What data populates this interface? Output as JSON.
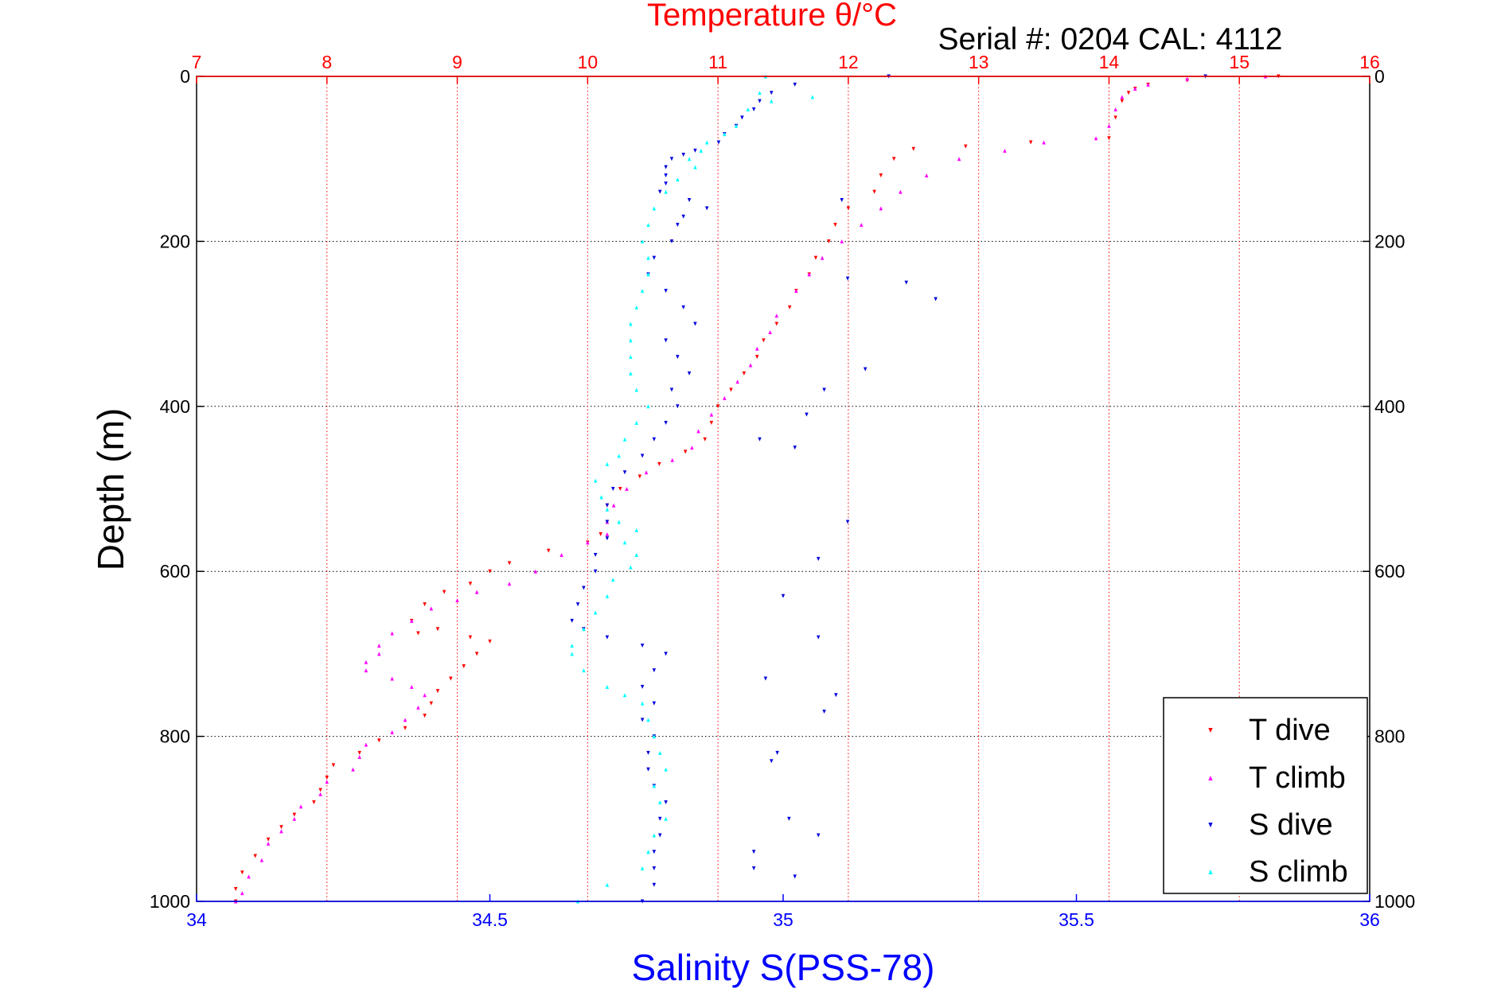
{
  "chart_data": {
    "type": "scatter",
    "title": "Temperature θ/°C",
    "annotation": "Serial #: 0204  CAL: 4112",
    "ylabel": "Depth (m)",
    "xlabel_bottom": "Salinity S(PSS-78)",
    "xlabel_top": "Temperature θ/°C",
    "ylim": [
      0,
      1000
    ],
    "y_reversed": true,
    "xlim_bottom": [
      34,
      36
    ],
    "xlim_top": [
      7,
      16
    ],
    "yticks": [
      "0",
      "200",
      "400",
      "600",
      "800",
      "1000"
    ],
    "xticks_bottom": [
      "34",
      "34.5",
      "35",
      "35.5",
      "36"
    ],
    "xticks_top": [
      "7",
      "8",
      "9",
      "10",
      "11",
      "12",
      "13",
      "14",
      "15",
      "16"
    ],
    "grid": true,
    "legend_position": "bottom-right",
    "colors": {
      "temperature_axis": "#ff0000",
      "salinity_axis": "#0000ff",
      "t_dive": "#ff0000",
      "t_climb": "#ff00ff",
      "s_dive": "#0000dd",
      "s_climb": "#00ffff"
    },
    "series": [
      {
        "name": "T dive",
        "axis": "temperature",
        "marker": "triangle-down",
        "color": "#ff0000",
        "points": [
          [
            15.3,
            0
          ],
          [
            14.6,
            5
          ],
          [
            14.3,
            10
          ],
          [
            14.2,
            15
          ],
          [
            14.15,
            20
          ],
          [
            14.1,
            30
          ],
          [
            14.05,
            50
          ],
          [
            14.0,
            75
          ],
          [
            13.4,
            80
          ],
          [
            12.9,
            85
          ],
          [
            12.5,
            88
          ],
          [
            12.35,
            100
          ],
          [
            12.25,
            120
          ],
          [
            12.2,
            140
          ],
          [
            12.0,
            160
          ],
          [
            11.9,
            180
          ],
          [
            11.85,
            200
          ],
          [
            11.75,
            220
          ],
          [
            11.7,
            240
          ],
          [
            11.6,
            260
          ],
          [
            11.55,
            280
          ],
          [
            11.45,
            300
          ],
          [
            11.35,
            320
          ],
          [
            11.3,
            340
          ],
          [
            11.2,
            360
          ],
          [
            11.1,
            380
          ],
          [
            11.0,
            400
          ],
          [
            10.95,
            420
          ],
          [
            10.9,
            440
          ],
          [
            10.75,
            455
          ],
          [
            10.55,
            470
          ],
          [
            10.4,
            485
          ],
          [
            10.25,
            500
          ],
          [
            10.15,
            520
          ],
          [
            10.15,
            540
          ],
          [
            10.1,
            555
          ],
          [
            10.0,
            565
          ],
          [
            9.7,
            575
          ],
          [
            9.4,
            590
          ],
          [
            9.25,
            600
          ],
          [
            9.1,
            615
          ],
          [
            8.9,
            625
          ],
          [
            8.75,
            640
          ],
          [
            8.65,
            660
          ],
          [
            8.85,
            670
          ],
          [
            8.7,
            675
          ],
          [
            9.1,
            680
          ],
          [
            9.25,
            685
          ],
          [
            9.15,
            700
          ],
          [
            9.05,
            715
          ],
          [
            8.95,
            730
          ],
          [
            8.85,
            745
          ],
          [
            8.8,
            760
          ],
          [
            8.75,
            775
          ],
          [
            8.6,
            790
          ],
          [
            8.4,
            805
          ],
          [
            8.25,
            820
          ],
          [
            8.05,
            835
          ],
          [
            8.0,
            850
          ],
          [
            7.95,
            865
          ],
          [
            7.9,
            880
          ],
          [
            7.75,
            895
          ],
          [
            7.65,
            910
          ],
          [
            7.55,
            925
          ],
          [
            7.45,
            945
          ],
          [
            7.35,
            965
          ],
          [
            7.3,
            985
          ],
          [
            7.3,
            1000
          ]
        ]
      },
      {
        "name": "T climb",
        "axis": "temperature",
        "marker": "triangle-up",
        "color": "#ff00ff",
        "points": [
          [
            15.2,
            0
          ],
          [
            14.6,
            3
          ],
          [
            14.3,
            10
          ],
          [
            14.2,
            15
          ],
          [
            14.1,
            25
          ],
          [
            14.05,
            40
          ],
          [
            14.0,
            60
          ],
          [
            13.9,
            75
          ],
          [
            13.5,
            80
          ],
          [
            13.2,
            90
          ],
          [
            12.85,
            100
          ],
          [
            12.6,
            120
          ],
          [
            12.4,
            140
          ],
          [
            12.25,
            160
          ],
          [
            12.1,
            180
          ],
          [
            11.95,
            200
          ],
          [
            11.8,
            220
          ],
          [
            11.7,
            240
          ],
          [
            11.6,
            260
          ],
          [
            11.45,
            290
          ],
          [
            11.4,
            310
          ],
          [
            11.3,
            330
          ],
          [
            11.25,
            350
          ],
          [
            11.15,
            370
          ],
          [
            11.05,
            390
          ],
          [
            10.95,
            410
          ],
          [
            10.85,
            430
          ],
          [
            10.8,
            450
          ],
          [
            10.65,
            465
          ],
          [
            10.45,
            480
          ],
          [
            10.3,
            500
          ],
          [
            10.2,
            520
          ],
          [
            10.15,
            540
          ],
          [
            10.15,
            555
          ],
          [
            10.0,
            565
          ],
          [
            9.8,
            580
          ],
          [
            9.6,
            600
          ],
          [
            9.4,
            615
          ],
          [
            9.15,
            625
          ],
          [
            9.0,
            635
          ],
          [
            8.8,
            645
          ],
          [
            8.65,
            660
          ],
          [
            8.5,
            675
          ],
          [
            8.4,
            690
          ],
          [
            8.4,
            700
          ],
          [
            8.3,
            710
          ],
          [
            8.3,
            720
          ],
          [
            8.5,
            730
          ],
          [
            8.65,
            740
          ],
          [
            8.75,
            750
          ],
          [
            8.7,
            765
          ],
          [
            8.6,
            780
          ],
          [
            8.5,
            795
          ],
          [
            8.3,
            810
          ],
          [
            8.25,
            825
          ],
          [
            8.2,
            840
          ],
          [
            8.0,
            855
          ],
          [
            7.95,
            870
          ],
          [
            7.8,
            885
          ],
          [
            7.75,
            900
          ],
          [
            7.65,
            915
          ],
          [
            7.55,
            930
          ],
          [
            7.5,
            950
          ],
          [
            7.4,
            970
          ],
          [
            7.35,
            990
          ],
          [
            7.3,
            1000
          ]
        ]
      },
      {
        "name": "S dive",
        "axis": "salinity",
        "marker": "triangle-down",
        "color": "#0000dd",
        "points": [
          [
            35.02,
            10
          ],
          [
            34.98,
            20
          ],
          [
            34.96,
            30
          ],
          [
            34.95,
            40
          ],
          [
            34.93,
            50
          ],
          [
            34.92,
            60
          ],
          [
            34.9,
            70
          ],
          [
            34.89,
            80
          ],
          [
            34.85,
            90
          ],
          [
            34.83,
            95
          ],
          [
            34.81,
            100
          ],
          [
            34.8,
            110
          ],
          [
            34.8,
            120
          ],
          [
            34.8,
            130
          ],
          [
            34.79,
            140
          ],
          [
            34.84,
            150
          ],
          [
            34.87,
            160
          ],
          [
            34.83,
            170
          ],
          [
            34.82,
            180
          ],
          [
            34.81,
            200
          ],
          [
            34.78,
            220
          ],
          [
            34.77,
            240
          ],
          [
            34.8,
            260
          ],
          [
            34.83,
            280
          ],
          [
            34.85,
            300
          ],
          [
            34.8,
            320
          ],
          [
            34.82,
            340
          ],
          [
            34.84,
            360
          ],
          [
            34.81,
            380
          ],
          [
            34.82,
            400
          ],
          [
            34.8,
            420
          ],
          [
            34.78,
            440
          ],
          [
            34.76,
            460
          ],
          [
            34.73,
            480
          ],
          [
            34.71,
            500
          ],
          [
            34.7,
            520
          ],
          [
            34.7,
            540
          ],
          [
            34.7,
            560
          ],
          [
            34.68,
            580
          ],
          [
            34.68,
            600
          ],
          [
            34.66,
            620
          ],
          [
            34.65,
            640
          ],
          [
            34.64,
            660
          ],
          [
            34.66,
            670
          ],
          [
            34.7,
            680
          ],
          [
            34.76,
            690
          ],
          [
            34.8,
            700
          ],
          [
            34.78,
            720
          ],
          [
            34.76,
            740
          ],
          [
            34.78,
            760
          ],
          [
            34.76,
            780
          ],
          [
            34.78,
            800
          ],
          [
            34.77,
            820
          ],
          [
            34.77,
            840
          ],
          [
            34.78,
            860
          ],
          [
            34.8,
            880
          ],
          [
            34.79,
            900
          ],
          [
            34.79,
            920
          ],
          [
            34.78,
            940
          ],
          [
            34.78,
            960
          ],
          [
            34.78,
            980
          ],
          [
            34.76,
            1000
          ],
          [
            35.1,
            150
          ],
          [
            35.11,
            245
          ],
          [
            35.21,
            250
          ],
          [
            35.26,
            270
          ],
          [
            35.14,
            355
          ],
          [
            35.07,
            380
          ],
          [
            35.04,
            410
          ],
          [
            34.96,
            440
          ],
          [
            35.02,
            450
          ],
          [
            35.11,
            540
          ],
          [
            35.06,
            585
          ],
          [
            35.0,
            630
          ],
          [
            35.06,
            680
          ],
          [
            34.97,
            730
          ],
          [
            35.09,
            750
          ],
          [
            35.07,
            770
          ],
          [
            34.99,
            820
          ],
          [
            34.98,
            830
          ],
          [
            35.01,
            900
          ],
          [
            35.06,
            920
          ],
          [
            34.95,
            940
          ],
          [
            34.95,
            960
          ],
          [
            35.02,
            970
          ],
          [
            35.18,
            0
          ],
          [
            35.72,
            0
          ]
        ]
      },
      {
        "name": "S climb",
        "axis": "salinity",
        "marker": "triangle-up",
        "color": "#00ffff",
        "points": [
          [
            34.97,
            0
          ],
          [
            34.96,
            20
          ],
          [
            34.98,
            30
          ],
          [
            35.05,
            25
          ],
          [
            34.94,
            40
          ],
          [
            34.92,
            60
          ],
          [
            34.9,
            70
          ],
          [
            34.87,
            80
          ],
          [
            34.86,
            90
          ],
          [
            34.84,
            100
          ],
          [
            34.85,
            110
          ],
          [
            34.82,
            125
          ],
          [
            34.8,
            140
          ],
          [
            34.78,
            160
          ],
          [
            34.77,
            180
          ],
          [
            34.76,
            200
          ],
          [
            34.77,
            220
          ],
          [
            34.77,
            240
          ],
          [
            34.76,
            260
          ],
          [
            34.75,
            280
          ],
          [
            34.74,
            300
          ],
          [
            34.74,
            320
          ],
          [
            34.74,
            340
          ],
          [
            34.74,
            360
          ],
          [
            34.75,
            380
          ],
          [
            34.77,
            400
          ],
          [
            34.75,
            420
          ],
          [
            34.73,
            440
          ],
          [
            34.72,
            460
          ],
          [
            34.7,
            470
          ],
          [
            34.68,
            490
          ],
          [
            34.69,
            510
          ],
          [
            34.7,
            525
          ],
          [
            34.72,
            540
          ],
          [
            34.75,
            550
          ],
          [
            34.73,
            565
          ],
          [
            34.75,
            580
          ],
          [
            34.74,
            595
          ],
          [
            34.71,
            610
          ],
          [
            34.7,
            630
          ],
          [
            34.68,
            650
          ],
          [
            34.66,
            670
          ],
          [
            34.64,
            690
          ],
          [
            34.64,
            700
          ],
          [
            34.66,
            720
          ],
          [
            34.7,
            740
          ],
          [
            34.73,
            750
          ],
          [
            34.76,
            760
          ],
          [
            34.77,
            780
          ],
          [
            34.78,
            800
          ],
          [
            34.79,
            820
          ],
          [
            34.8,
            840
          ],
          [
            34.78,
            860
          ],
          [
            34.79,
            880
          ],
          [
            34.8,
            900
          ],
          [
            34.78,
            920
          ],
          [
            34.77,
            940
          ],
          [
            34.76,
            960
          ],
          [
            34.7,
            980
          ],
          [
            34.65,
            1000
          ]
        ]
      }
    ]
  },
  "legend": {
    "items": [
      {
        "label": "T dive",
        "color": "#ff0000",
        "marker": "triangle-down"
      },
      {
        "label": "T climb",
        "color": "#ff00ff",
        "marker": "triangle-up"
      },
      {
        "label": "S dive",
        "color": "#0000dd",
        "marker": "triangle-down"
      },
      {
        "label": "S climb",
        "color": "#00ffff",
        "marker": "triangle-up"
      }
    ]
  }
}
